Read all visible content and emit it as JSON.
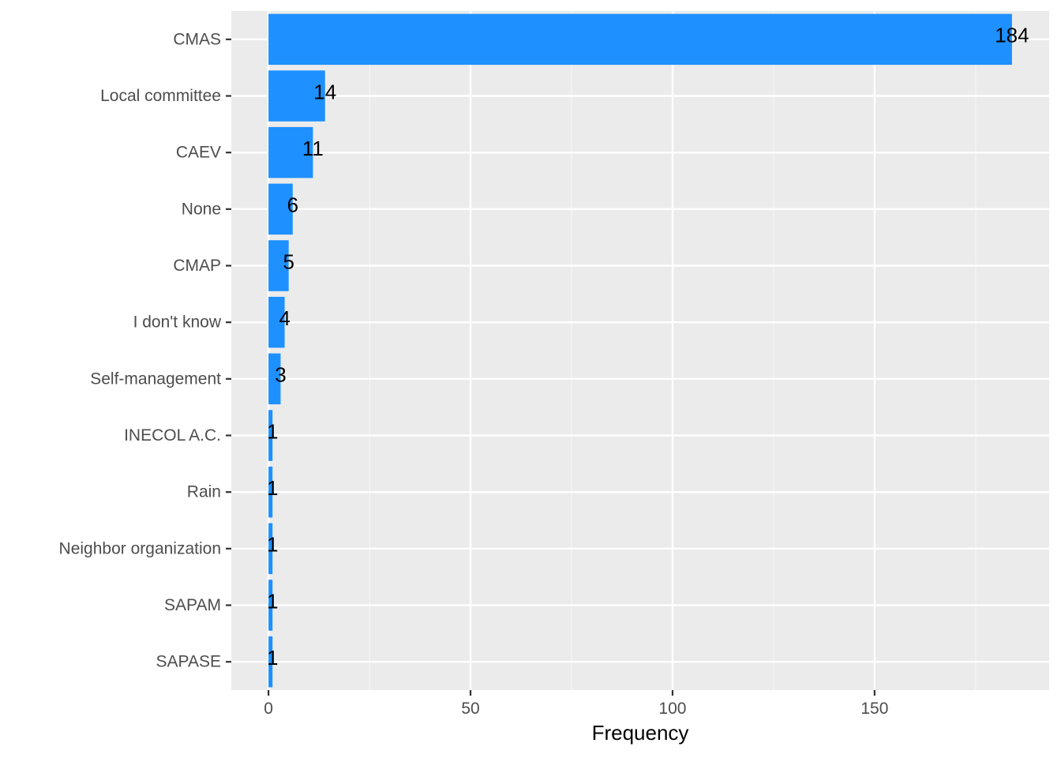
{
  "chart_data": {
    "type": "bar",
    "orientation": "horizontal",
    "title": "",
    "xlabel": "Frequency",
    "ylabel": "",
    "categories": [
      "CMAS",
      "Local committee",
      "CAEV",
      "None",
      "CMAP",
      "I don't know",
      "Self-management",
      "INECOL A.C.",
      "Rain",
      "Neighbor organization",
      "SAPAM",
      "SAPASE"
    ],
    "values": [
      184,
      14,
      11,
      6,
      5,
      4,
      3,
      1,
      1,
      1,
      1,
      1
    ],
    "data_labels": [
      "184",
      "14",
      "11",
      "6",
      "5",
      "4",
      "3",
      "1",
      "1",
      "1",
      "1",
      "1"
    ],
    "x_ticks": [
      0,
      50,
      100,
      150
    ],
    "x_tick_labels": [
      "0",
      "50",
      "100",
      "150"
    ],
    "xlim": [
      -9.2,
      193.2
    ],
    "grid": true,
    "legend": "none",
    "colors": {
      "bar": "#1E90FF",
      "panel_background": "#EBEBEB",
      "grid_major": "#FFFFFF",
      "grid_minor": "#F5F5F5",
      "tick_text": "#4D4D4D",
      "data_label": "#000000"
    }
  }
}
